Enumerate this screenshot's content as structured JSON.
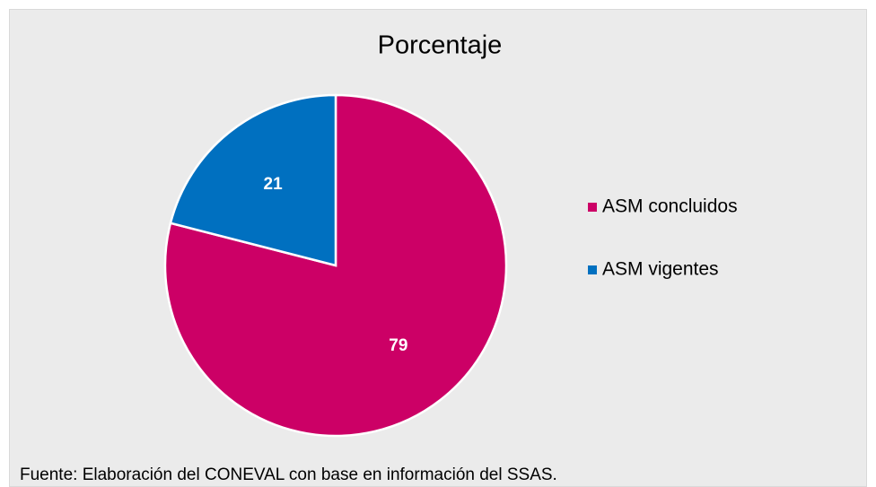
{
  "chart_data": {
    "type": "pie",
    "title": "Porcentaje",
    "categories": [
      "ASM concluidos",
      "ASM vigentes"
    ],
    "values": [
      79,
      21
    ],
    "colors": [
      "#cc0066",
      "#0070c0"
    ],
    "legend": "right",
    "source": "Fuente: Elaboración del CONEVAL con base en información del SSAS."
  }
}
